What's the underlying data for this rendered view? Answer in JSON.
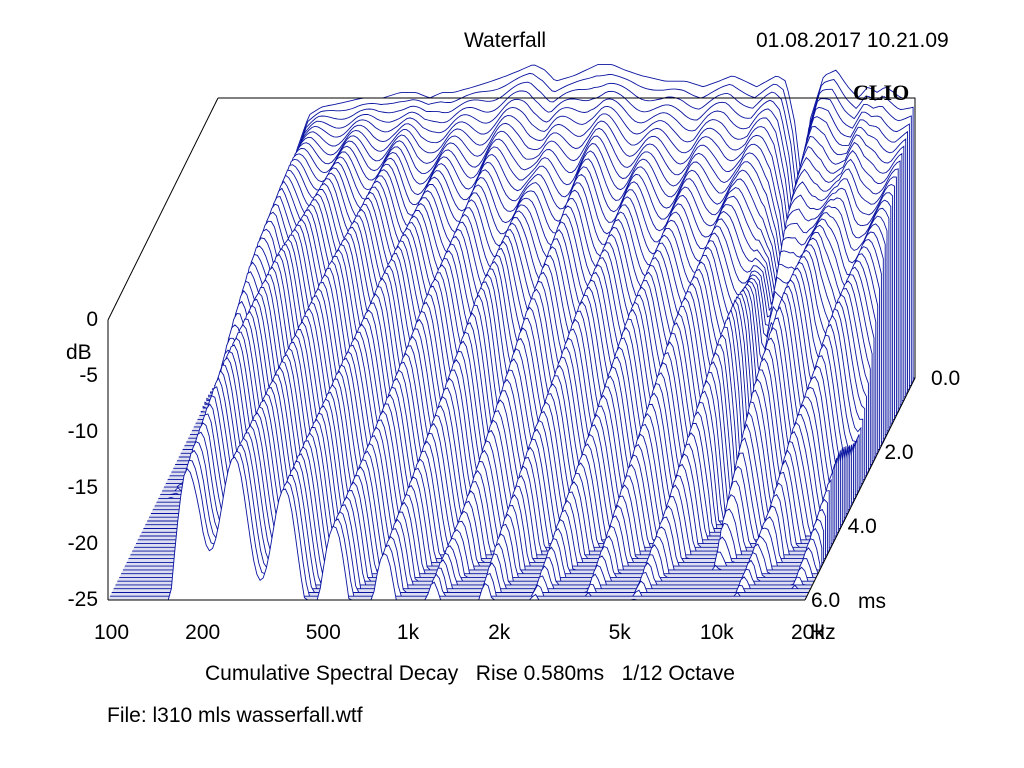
{
  "header": {
    "title": "Waterfall",
    "timestamp": "01.08.2017 10.21.09",
    "brand": "CLIO"
  },
  "footer": {
    "subtitle": "Cumulative Spectral Decay   Rise 0.580ms   1/12 Octave",
    "file": "File: l310 mls wasserfall.wtf"
  },
  "colors": {
    "trace": "#0a14a0",
    "floor": "#1e2a9a",
    "background": "#ffffff"
  },
  "chart_data": {
    "type": "waterfall",
    "title": "Waterfall",
    "x_axis": {
      "scale": "log",
      "range": [
        100,
        20000
      ],
      "ticks": [
        100,
        200,
        500,
        1000,
        2000,
        5000,
        10000,
        20000
      ],
      "tick_labels": [
        "100",
        "200",
        "500",
        "1k",
        "2k",
        "5k",
        "10k",
        "20k"
      ],
      "unit": "Hz"
    },
    "y_axis": {
      "label": "dB",
      "range": [
        -25,
        0
      ],
      "ticks": [
        0,
        -5,
        -10,
        -15,
        -20,
        -25
      ],
      "tick_labels": [
        "0",
        "-5",
        "-10",
        "-15",
        "-20",
        "-25"
      ]
    },
    "z_axis": {
      "range": [
        0,
        6
      ],
      "ticks": [
        0,
        2,
        4,
        6
      ],
      "tick_labels": [
        "0.0",
        "2.0",
        "4.0",
        "6.0"
      ],
      "unit": "ms"
    },
    "slices": 60,
    "rise_ms": 0.58,
    "smoothing": "1/12 Octave",
    "initial_response": {
      "freq": [
        100,
        150,
        160,
        180,
        200,
        220,
        250,
        300,
        350,
        400,
        450,
        500,
        550,
        600,
        700,
        800,
        900,
        1000,
        1100,
        1200,
        1300,
        1500,
        1800,
        2000,
        2200,
        2500,
        3000,
        3500,
        4000,
        4500,
        5000,
        5500,
        6000,
        7000,
        7500,
        8000,
        8500,
        9000,
        10000,
        11000,
        12000,
        13000,
        14000,
        15000,
        16000,
        17000,
        18000,
        20000
      ],
      "db": [
        -25,
        -25,
        -12,
        -5,
        -1.5,
        -0.8,
        -0.5,
        0,
        0,
        0.5,
        0.5,
        0,
        0.5,
        0.5,
        1,
        1.5,
        2,
        2.5,
        3,
        2.5,
        1.5,
        2,
        3,
        3,
        2.5,
        2,
        1.5,
        1.5,
        1,
        1.5,
        2,
        1.5,
        1,
        2,
        1.5,
        -2,
        -8,
        -2,
        2,
        2.5,
        1,
        0,
        1,
        0.5,
        1,
        0.5,
        0,
        0
      ]
    },
    "grid": false,
    "legend": "none"
  }
}
